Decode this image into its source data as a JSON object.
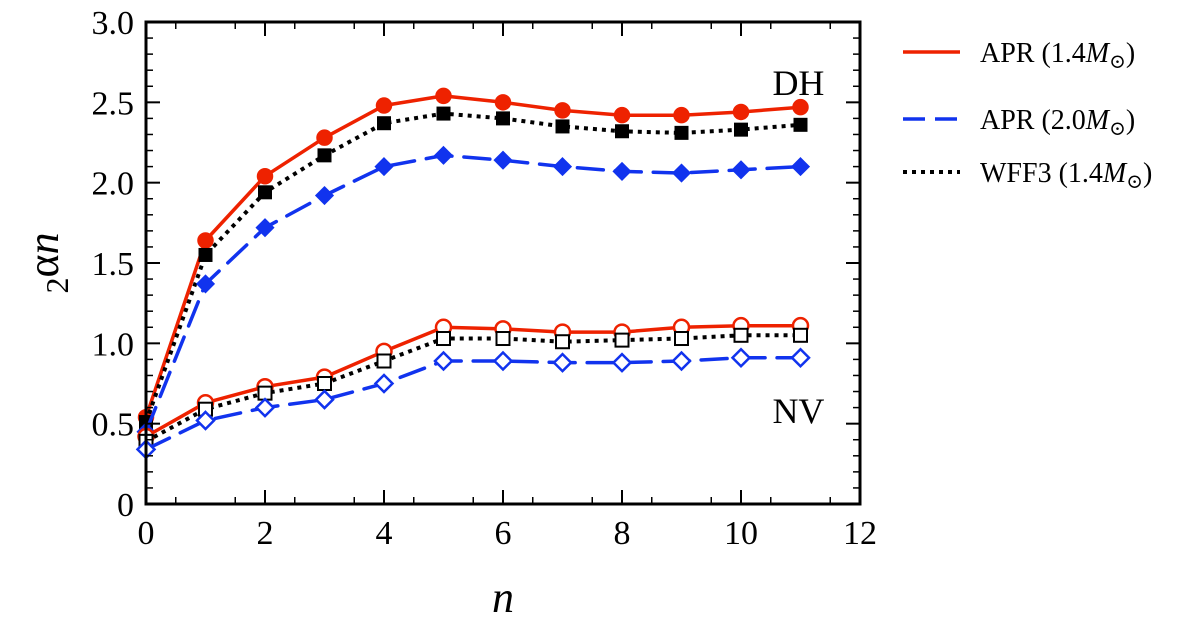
{
  "chart_data": {
    "type": "line",
    "xlabel": "n",
    "ylabel": {
      "prefix": "2",
      "symbol": "α",
      "subscript": "n"
    },
    "xlim": [
      0,
      12
    ],
    "ylim": [
      0,
      3.0
    ],
    "x_ticks": [
      "0",
      "2",
      "4",
      "6",
      "8",
      "10",
      "12"
    ],
    "y_ticks": [
      "0",
      "0.5",
      "1.0",
      "1.5",
      "2.0",
      "2.5",
      "3.0"
    ],
    "x_tick_values": [
      0,
      2,
      4,
      6,
      8,
      10,
      12
    ],
    "y_tick_values": [
      0,
      0.5,
      1.0,
      1.5,
      2.0,
      2.5,
      3.0
    ],
    "grid": false,
    "legend_position": "right",
    "annotations": [
      {
        "text": "DH",
        "x": 11.1,
        "y": 2.62
      },
      {
        "text": "NV",
        "x": 11.1,
        "y": 0.58
      }
    ],
    "x": [
      0,
      1,
      2,
      3,
      4,
      5,
      6,
      7,
      8,
      9,
      10,
      11
    ],
    "series": [
      {
        "name": "APR (1.4M⊙) DH",
        "legend": "APR 1.4",
        "group": "DH",
        "color": "#ee2200",
        "dash": "solid",
        "marker": "circle",
        "filled": true,
        "values": [
          0.54,
          1.64,
          2.04,
          2.28,
          2.48,
          2.54,
          2.5,
          2.45,
          2.42,
          2.42,
          2.44,
          2.47
        ]
      },
      {
        "name": "WFF3 (1.4M⊙) DH",
        "legend": "WFF3 1.4",
        "group": "DH",
        "color": "#000000",
        "dash": "dotted",
        "marker": "square",
        "filled": true,
        "values": [
          0.51,
          1.55,
          1.94,
          2.17,
          2.37,
          2.43,
          2.4,
          2.35,
          2.32,
          2.31,
          2.33,
          2.36
        ]
      },
      {
        "name": "APR (2.0M⊙) DH",
        "legend": "APR 2.0",
        "group": "DH",
        "color": "#1133ee",
        "dash": "dashed",
        "marker": "diamond",
        "filled": true,
        "values": [
          0.45,
          1.37,
          1.72,
          1.92,
          2.1,
          2.17,
          2.14,
          2.1,
          2.07,
          2.06,
          2.08,
          2.1
        ]
      },
      {
        "name": "APR (1.4M⊙) NV",
        "group": "NV",
        "color": "#ee2200",
        "dash": "solid",
        "marker": "circle",
        "filled": false,
        "values": [
          0.42,
          0.63,
          0.73,
          0.79,
          0.95,
          1.1,
          1.09,
          1.07,
          1.07,
          1.1,
          1.11,
          1.11
        ]
      },
      {
        "name": "WFF3 (1.4M⊙) NV",
        "group": "NV",
        "color": "#000000",
        "dash": "dotted",
        "marker": "square",
        "filled": false,
        "values": [
          0.39,
          0.59,
          0.69,
          0.75,
          0.89,
          1.03,
          1.03,
          1.01,
          1.02,
          1.03,
          1.05,
          1.05
        ]
      },
      {
        "name": "APR (2.0M⊙) NV",
        "group": "NV",
        "color": "#1133ee",
        "dash": "dashed",
        "marker": "diamond",
        "filled": false,
        "values": [
          0.34,
          0.52,
          0.6,
          0.65,
          0.75,
          0.89,
          0.89,
          0.88,
          0.88,
          0.89,
          0.91,
          0.91
        ]
      }
    ],
    "legend": [
      {
        "label": "APR (1.4",
        "mass_symbol": "M",
        "sub_symbol": "⊙",
        "close": ")",
        "color": "#ee2200",
        "dash": "solid"
      },
      {
        "label": "APR (2.0",
        "mass_symbol": "M",
        "sub_symbol": "⊙",
        "close": ")",
        "color": "#1133ee",
        "dash": "dashed"
      },
      {
        "label": "WFF3 (1.4",
        "mass_symbol": "M",
        "sub_symbol": "⊙",
        "close": ")",
        "color": "#000000",
        "dash": "dotted"
      }
    ]
  }
}
